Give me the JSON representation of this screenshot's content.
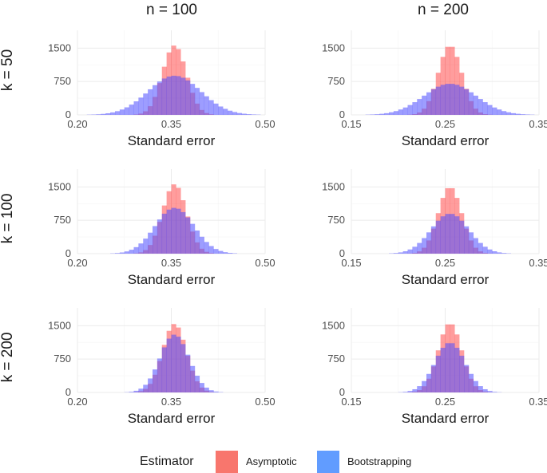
{
  "chart_data": {
    "type": "histogram",
    "facet_columns": [
      "n = 100",
      "n = 200"
    ],
    "facet_rows": [
      "k = 50",
      "k = 100",
      "k = 200"
    ],
    "xlabel": "Standard error",
    "ylabel": "",
    "ylim": [
      0,
      1900
    ],
    "y_ticks": [
      0,
      750,
      1500
    ],
    "y_tick_labels": [
      "0",
      "750",
      "1500"
    ],
    "x_axes": {
      "n = 100": {
        "xlim": [
          0.2,
          0.5
        ],
        "ticks": [
          0.2,
          0.35,
          0.5
        ],
        "tick_labels": [
          "0.20",
          "0.35",
          "0.50"
        ]
      },
      "n = 200": {
        "xlim": [
          0.15,
          0.35
        ],
        "ticks": [
          0.15,
          0.25,
          0.35
        ],
        "tick_labels": [
          "0.15",
          "0.25",
          "0.35"
        ]
      }
    },
    "legend": {
      "title": "Estimator",
      "position": "bottom",
      "entries": [
        {
          "name": "Asymptotic",
          "color": "#f8766d"
        },
        {
          "name": "Bootstrapping",
          "color": "#619cff"
        }
      ]
    },
    "series_style": {
      "Asymptotic": {
        "fill": "#ff4d4d",
        "opacity": 0.55
      },
      "Bootstrapping": {
        "fill": "#4d4dff",
        "opacity": 0.55
      }
    },
    "panels": [
      {
        "col": "n = 100",
        "row": "k = 50",
        "series": [
          {
            "name": "Asymptotic",
            "center": 0.355,
            "sd": 0.019,
            "peak": 1560
          },
          {
            "name": "Bootstrapping",
            "center": 0.355,
            "sd": 0.042,
            "peak": 880
          }
        ]
      },
      {
        "col": "n = 200",
        "row": "k = 50",
        "series": [
          {
            "name": "Asymptotic",
            "center": 0.255,
            "sd": 0.0125,
            "peak": 1560
          },
          {
            "name": "Bootstrapping",
            "center": 0.255,
            "sd": 0.028,
            "peak": 700
          }
        ]
      },
      {
        "col": "n = 100",
        "row": "k = 100",
        "series": [
          {
            "name": "Asymptotic",
            "center": 0.355,
            "sd": 0.019,
            "peak": 1560
          },
          {
            "name": "Bootstrapping",
            "center": 0.355,
            "sd": 0.031,
            "peak": 1030
          }
        ]
      },
      {
        "col": "n = 200",
        "row": "k = 100",
        "series": [
          {
            "name": "Asymptotic",
            "center": 0.255,
            "sd": 0.0125,
            "peak": 1500
          },
          {
            "name": "Bootstrapping",
            "center": 0.255,
            "sd": 0.02,
            "peak": 900
          }
        ]
      },
      {
        "col": "n = 100",
        "row": "k = 200",
        "series": [
          {
            "name": "Asymptotic",
            "center": 0.355,
            "sd": 0.019,
            "peak": 1540
          },
          {
            "name": "Bootstrapping",
            "center": 0.355,
            "sd": 0.023,
            "peak": 1300
          }
        ]
      },
      {
        "col": "n = 200",
        "row": "k = 200",
        "series": [
          {
            "name": "Asymptotic",
            "center": 0.255,
            "sd": 0.0125,
            "peak": 1560
          },
          {
            "name": "Bootstrapping",
            "center": 0.255,
            "sd": 0.016,
            "peak": 1120
          }
        ]
      }
    ]
  }
}
